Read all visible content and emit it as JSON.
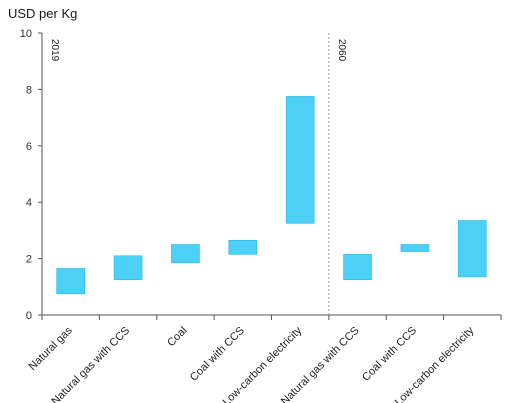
{
  "chart_data": {
    "type": "bar",
    "subtype": "floating-range",
    "ylabel": "USD per Kg",
    "ylim": [
      0,
      10
    ],
    "yticks": [
      0,
      2,
      4,
      6,
      8,
      10
    ],
    "grid": false,
    "bar_color": "#4dd0f5",
    "divider_color": "#9a9a9a",
    "categories": [
      "Natural gas",
      "Natural gas with CCS",
      "Coal",
      "Coal with CCS",
      "Low-carbon electricity",
      "Natural gas with CCS",
      "Coal with CCS",
      "Low-carbon electricity"
    ],
    "ranges": [
      [
        0.75,
        1.65
      ],
      [
        1.25,
        2.1
      ],
      [
        1.85,
        2.5
      ],
      [
        2.15,
        2.65
      ],
      [
        3.25,
        7.75
      ],
      [
        1.25,
        2.15
      ],
      [
        2.25,
        2.5
      ],
      [
        1.35,
        3.35
      ]
    ],
    "groups": [
      {
        "label": "2019",
        "start": 0
      },
      {
        "label": "2060",
        "start": 5
      }
    ]
  }
}
